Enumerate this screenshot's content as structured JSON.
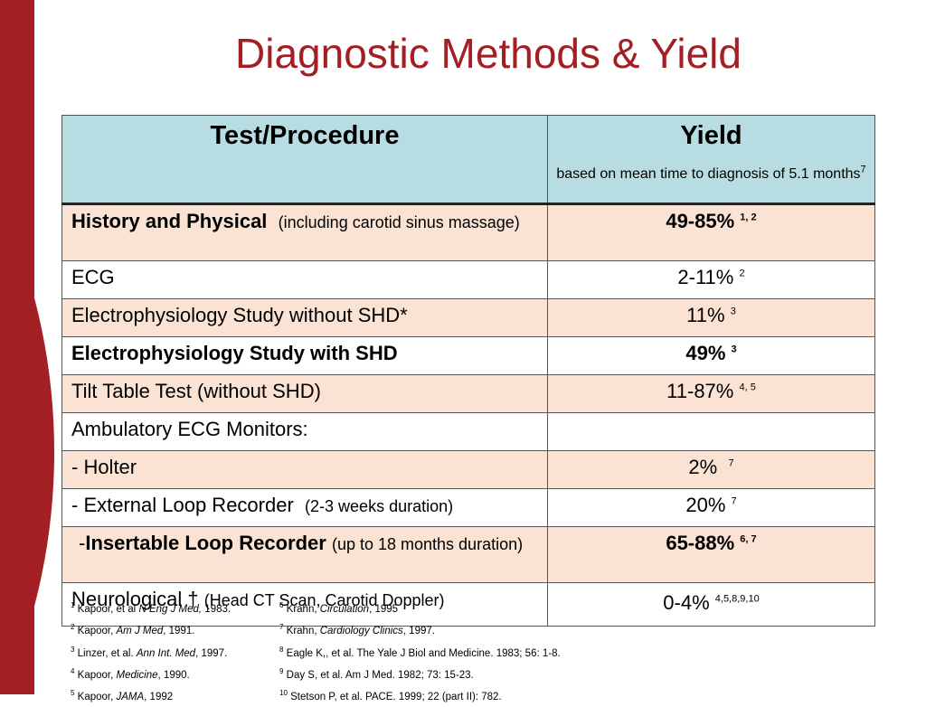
{
  "title": "Diagnostic Methods & Yield",
  "header": {
    "col1": "Test/Procedure",
    "col2": "Yield",
    "col2_sub": "based on mean time to diagnosis of 5.1 months",
    "col2_sub_sup": "7"
  },
  "rows": [
    {
      "test_bold": "History and Physical",
      "test_rest": "(including carotid sinus massage)",
      "yield": "49-85%",
      "sup": "1, 2"
    },
    {
      "test": "ECG",
      "yield": "2-11%",
      "sup": "2"
    },
    {
      "test": "Electrophysiology Study without SHD*",
      "yield": "11%",
      "sup": "3"
    },
    {
      "test_bold": "Electrophysiology Study with SHD",
      "yield": "49%",
      "sup": "3"
    },
    {
      "test": "Tilt Table Test (without SHD)",
      "yield": "11-87%",
      "sup": "4, 5"
    },
    {
      "test": "Ambulatory ECG Monitors:",
      "yield": "",
      "sup": ""
    },
    {
      "test": "- Holter",
      "yield": "2%",
      "sup": "7"
    },
    {
      "test": "- External Loop Recorder",
      "test_small": "(2-3 weeks duration)",
      "yield": "20%",
      "sup": "7"
    },
    {
      "test_prefix": "-",
      "test_bold": "Insertable Loop Recorder",
      "test_small": "(up to 18 months duration)",
      "yield": "65-88%",
      "sup": "6, 7"
    },
    {
      "test": "Neurological †",
      "test_small": "(Head CT Scan, Carotid Doppler)",
      "yield": "0-4%",
      "sup": "4,5,8,9,10"
    }
  ],
  "footnotes_left": [
    {
      "n": "1",
      "pre": "Kapoor, et al ",
      "ital": "N Eng J Med,",
      "post": " 1983."
    },
    {
      "n": "2",
      "pre": "Kapoor, ",
      "ital": "Am J Med",
      "post": ", 1991."
    },
    {
      "n": "3",
      "pre": "Linzer, et al. ",
      "ital": "Ann Int. Med",
      "post": ", 1997."
    },
    {
      "n": "4",
      "pre": "Kapoor, ",
      "ital": "Medicine",
      "post": ", 1990."
    },
    {
      "n": "5",
      "pre": "Kapoor, ",
      "ital": "JAMA",
      "post": ", 1992"
    }
  ],
  "footnotes_right": [
    {
      "n": "6",
      "pre": "Krahn, ",
      "ital": "Circulation",
      "post": ", 1995"
    },
    {
      "n": "7",
      "pre": "Krahn, ",
      "ital": "Cardiology Clinics",
      "post": ", 1997."
    },
    {
      "n": "8",
      "pre": "Eagle K,, et al. The Yale J Biol and Medicine. 1983; 56: 1-8.",
      "ital": "",
      "post": ""
    },
    {
      "n": "9",
      "pre": "Day S, et al. Am J Med. 1982; 73: 15-23.",
      "ital": "",
      "post": ""
    },
    {
      "n": "10",
      "pre": "Stetson P, et al.  PACE. 1999; 22 (part II): 782.",
      "ital": "",
      "post": ""
    }
  ],
  "colors": {
    "accent": "#a31f24",
    "header_fill": "#b7dde2",
    "row_fill": "#fbe3d4"
  }
}
